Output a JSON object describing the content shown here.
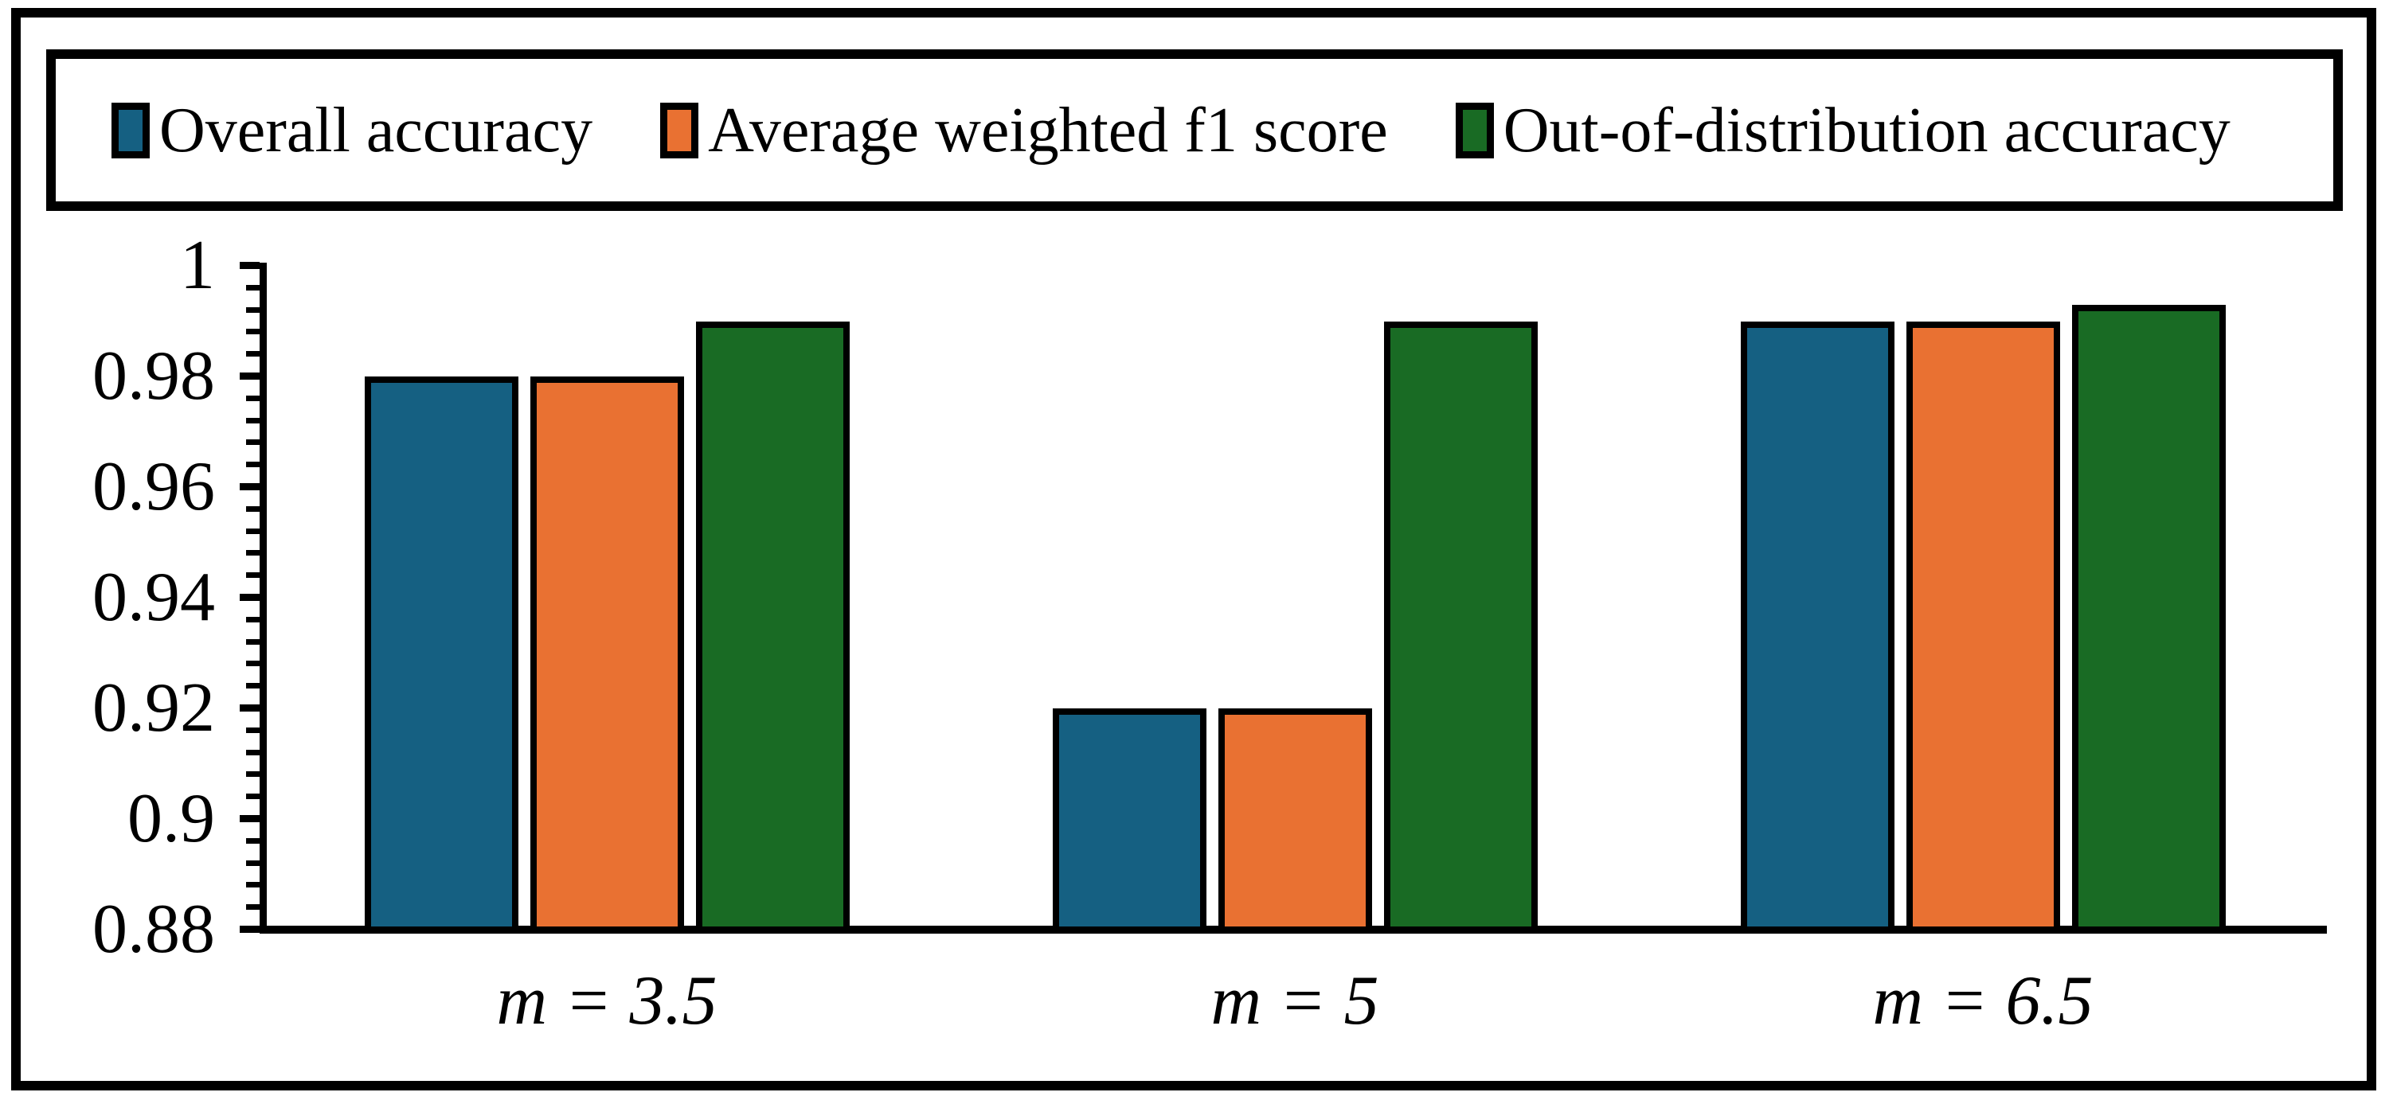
{
  "figure": {
    "background": "#ffffff",
    "border_color": "#000000"
  },
  "chart_data": {
    "type": "bar",
    "categories": [
      "m = 3.5",
      "m = 5",
      "m = 6.5"
    ],
    "series": [
      {
        "name": "Overall accuracy",
        "color": "#156082",
        "values": [
          0.98,
          0.92,
          0.99
        ]
      },
      {
        "name": "Average weighted f1 score",
        "color": "#E97132",
        "values": [
          0.98,
          0.92,
          0.99
        ]
      },
      {
        "name": "Out-of-distribution accuracy",
        "color": "#196B24",
        "values": [
          0.99,
          0.99,
          0.993
        ]
      }
    ],
    "title": "",
    "xlabel": "",
    "ylabel": "",
    "ylim": [
      0.88,
      1.0
    ],
    "y_major_ticks": [
      "1",
      "0.98",
      "0.96",
      "0.94",
      "0.92",
      "0.9",
      "0.88"
    ],
    "y_major_tick_values": [
      1,
      0.98,
      0.96,
      0.94,
      0.92,
      0.9,
      0.88
    ],
    "y_minor_interval": 0.004,
    "grid": false,
    "legend_position": "top",
    "bar_edge_color": "#000000",
    "axis_color": "#000000"
  }
}
